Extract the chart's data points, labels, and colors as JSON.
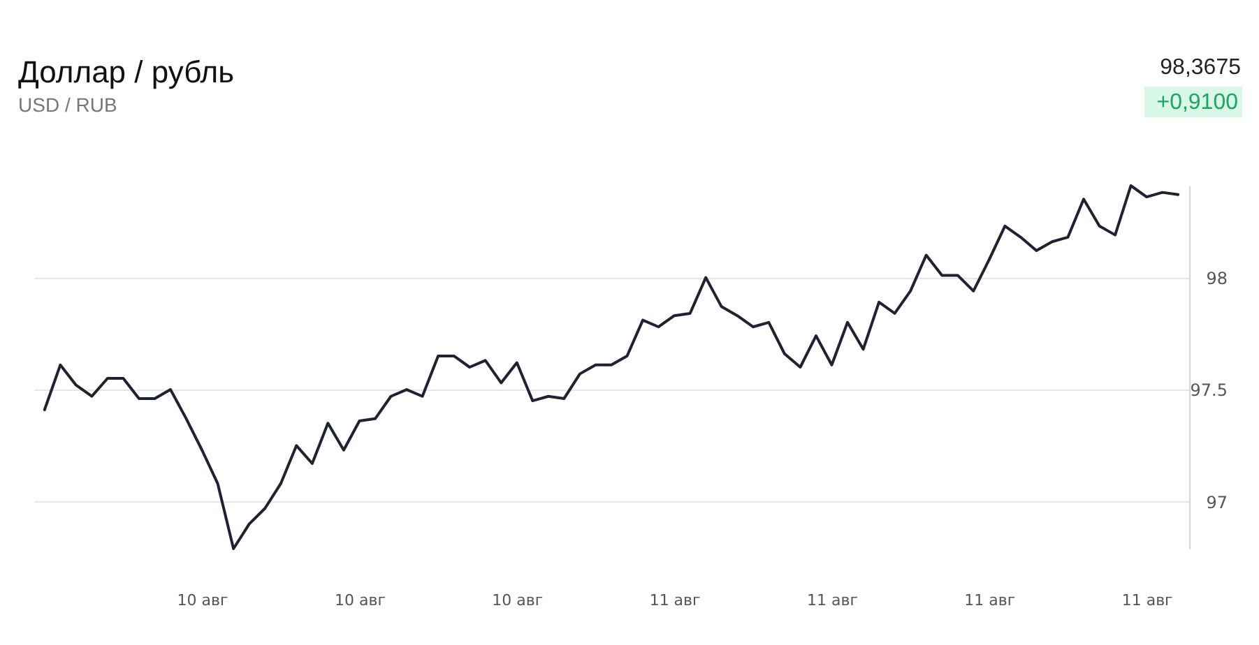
{
  "chart_data": {
    "type": "line",
    "title": "Доллар / рубль",
    "subtitle": "USD / RUB",
    "annotations": [
      "98,3675",
      "+0,9100"
    ],
    "categories": [
      null,
      null,
      null,
      null,
      null,
      null,
      null,
      null,
      null,
      null,
      "10 авг",
      null,
      null,
      null,
      null,
      null,
      null,
      null,
      null,
      null,
      "10 авг",
      null,
      null,
      null,
      null,
      null,
      null,
      null,
      null,
      null,
      "10 авг",
      null,
      null,
      null,
      null,
      null,
      null,
      null,
      null,
      null,
      "11 авг",
      null,
      null,
      null,
      null,
      null,
      null,
      null,
      null,
      null,
      "11 авг",
      null,
      null,
      null,
      null,
      null,
      null,
      null,
      null,
      null,
      "11 авг",
      null,
      null,
      null,
      null,
      null,
      null,
      null,
      null,
      null,
      "11 авг",
      null,
      null
    ],
    "values": [
      97.41,
      97.61,
      97.52,
      97.47,
      97.55,
      97.55,
      97.46,
      97.46,
      97.5,
      97.37,
      97.23,
      97.08,
      96.79,
      96.9,
      96.97,
      97.08,
      97.25,
      97.17,
      97.35,
      97.23,
      97.36,
      97.37,
      97.47,
      97.5,
      97.47,
      97.65,
      97.65,
      97.6,
      97.63,
      97.53,
      97.62,
      97.45,
      97.47,
      97.46,
      97.57,
      97.61,
      97.61,
      97.65,
      97.81,
      97.78,
      97.83,
      97.84,
      98.0,
      97.87,
      97.83,
      97.78,
      97.8,
      97.66,
      97.6,
      97.74,
      97.61,
      97.8,
      97.68,
      97.89,
      97.84,
      97.94,
      98.1,
      98.01,
      98.01,
      97.94,
      98.08,
      98.23,
      98.18,
      98.12,
      98.16,
      98.18,
      98.35,
      98.23,
      98.19,
      98.41,
      98.36,
      98.38,
      98.37
    ],
    "color": "#1f2230",
    "ylim": [
      96.79,
      98.41
    ],
    "yticks": [
      97,
      97.5,
      98
    ],
    "grid": "y"
  }
}
